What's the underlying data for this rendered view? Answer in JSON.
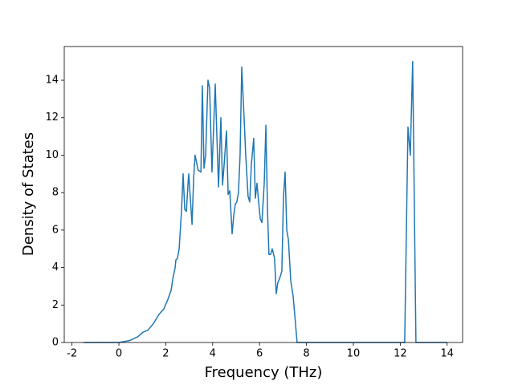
{
  "chart_data": {
    "type": "line",
    "xlabel": "Frequency (THz)",
    "ylabel": "Density of States",
    "color": "#1f77b4",
    "x": [
      -1.5,
      0,
      0.45,
      0.8,
      1.03,
      1.23,
      1.47,
      1.71,
      1.92,
      2.09,
      2.23,
      2.3,
      2.4,
      2.43,
      2.5,
      2.57,
      2.67,
      2.74,
      2.81,
      2.88,
      2.95,
      2.98,
      3.12,
      3.19,
      3.25,
      3.38,
      3.5,
      3.56,
      3.63,
      3.7,
      3.8,
      3.87,
      3.97,
      4.11,
      4.18,
      4.25,
      4.35,
      4.42,
      4.49,
      4.59,
      4.66,
      4.73,
      4.83,
      4.9,
      4.97,
      5.03,
      5.1,
      5.17,
      5.24,
      5.34,
      5.41,
      5.51,
      5.58,
      5.65,
      5.75,
      5.82,
      5.89,
      5.96,
      6.03,
      6.1,
      6.2,
      6.27,
      6.34,
      6.4,
      6.47,
      6.54,
      6.64,
      6.71,
      6.78,
      6.85,
      6.95,
      7.02,
      7.09,
      7.16,
      7.23,
      7.33,
      7.43,
      7.5,
      7.6,
      12.19,
      12.33,
      12.43,
      12.53,
      12.67,
      14.0
    ],
    "values": [
      0,
      0,
      0.1,
      0.3,
      0.55,
      0.65,
      1.0,
      1.5,
      1.8,
      2.3,
      2.8,
      3.4,
      4.0,
      4.4,
      4.5,
      5.0,
      7.0,
      9.0,
      7.1,
      7.0,
      8.5,
      9.0,
      6.3,
      8.8,
      10.0,
      9.2,
      9.1,
      13.7,
      9.3,
      10.0,
      14.0,
      13.6,
      9.1,
      13.8,
      11.0,
      8.3,
      12.0,
      8.4,
      9.5,
      11.3,
      7.9,
      8.1,
      5.8,
      6.8,
      7.4,
      7.5,
      8.0,
      10.0,
      14.7,
      12.0,
      10.0,
      7.8,
      7.5,
      9.5,
      10.9,
      7.7,
      8.5,
      7.5,
      6.6,
      6.4,
      8.5,
      11.6,
      7.0,
      4.7,
      4.7,
      5.0,
      4.5,
      2.6,
      3.2,
      3.4,
      3.8,
      7.8,
      9.1,
      6.0,
      5.5,
      3.3,
      2.5,
      1.5,
      0,
      0,
      11.5,
      10.0,
      15.0,
      0,
      0
    ],
    "xlim": [
      -2.33,
      14.66
    ],
    "ylim": [
      0,
      15.8
    ],
    "xticks": [
      -2,
      0,
      2,
      4,
      6,
      8,
      10,
      12,
      14
    ],
    "yticks": [
      0,
      2,
      4,
      6,
      8,
      10,
      12,
      14
    ]
  }
}
